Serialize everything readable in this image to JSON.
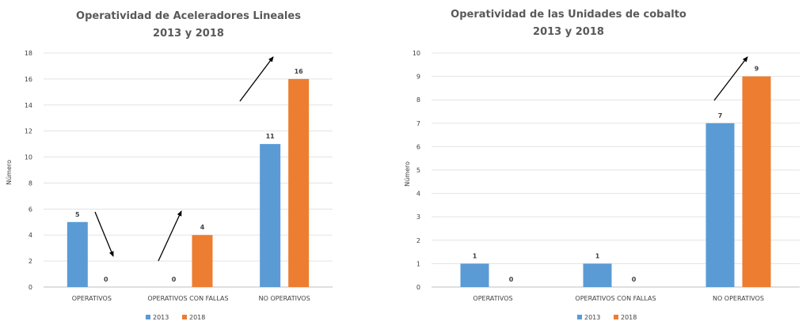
{
  "chart_data": [
    {
      "type": "bar",
      "title_lines": [
        "Operatividad de Aceleradores Lineales",
        "2013 y 2018"
      ],
      "ylabel": "Número",
      "xlabel": "",
      "ylim": [
        0,
        18
      ],
      "y_ticks": [
        0,
        2,
        4,
        6,
        8,
        10,
        12,
        14,
        16,
        18
      ],
      "grid": true,
      "legend": "bottom",
      "categories": [
        "OPERATIVOS",
        "OPERATIVOS CON FALLAS",
        "NO OPERATIVOS"
      ],
      "series": [
        {
          "name": "2013",
          "color": "#5b9bd5",
          "values": [
            5,
            0,
            11
          ]
        },
        {
          "name": "2018",
          "color": "#ed7d31",
          "values": [
            0,
            4,
            16
          ]
        }
      ],
      "annotations": [
        {
          "kind": "arrow",
          "category": "OPERATIVOS",
          "direction": "down"
        },
        {
          "kind": "arrow",
          "category": "OPERATIVOS CON FALLAS",
          "direction": "up"
        },
        {
          "kind": "arrow",
          "category": "NO OPERATIVOS",
          "direction": "up"
        }
      ]
    },
    {
      "type": "bar",
      "title_lines": [
        "Operatividad de las Unidades de cobalto",
        "2013 y 2018"
      ],
      "ylabel": "Número",
      "xlabel": "",
      "ylim": [
        0,
        10
      ],
      "y_ticks": [
        0,
        1,
        2,
        3,
        4,
        5,
        6,
        7,
        8,
        9,
        10
      ],
      "grid": true,
      "legend": "bottom",
      "categories": [
        "OPERATIVOS",
        "OPERATIVOS CON FALLAS",
        "NO OPERATIVOS"
      ],
      "series": [
        {
          "name": "2013",
          "color": "#5b9bd5",
          "values": [
            1,
            1,
            7
          ]
        },
        {
          "name": "2018",
          "color": "#ed7d31",
          "values": [
            0,
            0,
            9
          ]
        }
      ],
      "annotations": [
        {
          "kind": "arrow",
          "category": "NO OPERATIVOS",
          "direction": "up"
        }
      ]
    }
  ]
}
